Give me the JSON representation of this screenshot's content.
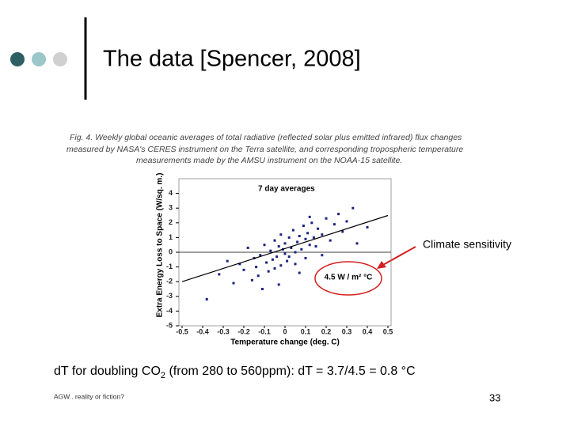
{
  "slide": {
    "title": "The data [Spencer, 2008]",
    "caption": [
      "Fig. 4. Weekly global oceanic averages of total radiative (reflected solar plus emitted infrared) flux changes",
      "measured by NASA's CERES instrument on the Terra satellite, and corresponding tropospheric temperature",
      "measurements made by the AMSU instrument on the NOAA-15 satellite."
    ],
    "annotation": "Climate sensitivity",
    "formula": [
      "dT for doubling CO",
      "2",
      " (from 280 to 560ppm): dT = 3.7/4.5 = 0.8 °C"
    ],
    "footer_left": "AGW.. reality or fiction?",
    "page_number": "33"
  },
  "chart_data": {
    "type": "scatter",
    "subtitle": "7 day averages",
    "xlabel": "Temperature change (deg. C)",
    "ylabel": "Extra Energy Loss to Space (W/sq. m.)",
    "xlim": [
      -0.5,
      0.5
    ],
    "ylim": [
      -5,
      5
    ],
    "xticks": [
      -0.5,
      -0.4,
      -0.3,
      -0.2,
      -0.1,
      0,
      0.1,
      0.2,
      0.3,
      0.4,
      0.5
    ],
    "yticks": [
      4,
      3,
      2,
      1,
      0,
      -1,
      -2,
      -3,
      -4,
      -5
    ],
    "color": "#1a237e",
    "x": [
      -0.32,
      -0.28,
      -0.25,
      -0.22,
      -0.2,
      -0.18,
      -0.16,
      -0.15,
      -0.14,
      -0.12,
      -0.11,
      -0.1,
      -0.09,
      -0.08,
      -0.07,
      -0.06,
      -0.05,
      -0.05,
      -0.04,
      -0.03,
      -0.02,
      -0.02,
      -0.01,
      0,
      0,
      0.01,
      0.02,
      0.02,
      0.03,
      0.04,
      0.05,
      0.05,
      0.06,
      0.07,
      0.08,
      0.09,
      0.1,
      0.1,
      0.11,
      0.12,
      0.13,
      0.14,
      0.15,
      0.16,
      0.18,
      0.2,
      0.22,
      0.24,
      0.26,
      0.28,
      0.3,
      0.33,
      -0.38,
      0.4,
      -0.13,
      0.07,
      -0.03,
      0.12,
      0.18,
      0.35
    ],
    "values": [
      -1.5,
      -0.6,
      -2.1,
      -0.8,
      -1.2,
      0.3,
      -1.9,
      -0.4,
      -1.0,
      -0.2,
      -2.5,
      0.5,
      -0.7,
      -1.3,
      0.1,
      -0.5,
      0.8,
      -1.1,
      -0.3,
      0.4,
      -0.9,
      1.2,
      0.2,
      -0.1,
      0.6,
      -0.6,
      1.0,
      -0.3,
      0.3,
      1.5,
      0,
      -0.8,
      0.7,
      1.1,
      0.2,
      1.8,
      0.9,
      -0.4,
      1.3,
      0.5,
      2.0,
      1.0,
      0.4,
      1.6,
      1.2,
      2.3,
      0.8,
      1.9,
      2.6,
      1.4,
      2.1,
      3.0,
      -3.2,
      1.7,
      -1.6,
      -1.4,
      -2.2,
      2.4,
      -0.2,
      0.6
    ],
    "fit_line": {
      "x": [
        -0.5,
        0.5
      ],
      "y": [
        -2,
        2.5
      ],
      "label": "4.5 W / m² °C",
      "color": "#000000"
    }
  }
}
